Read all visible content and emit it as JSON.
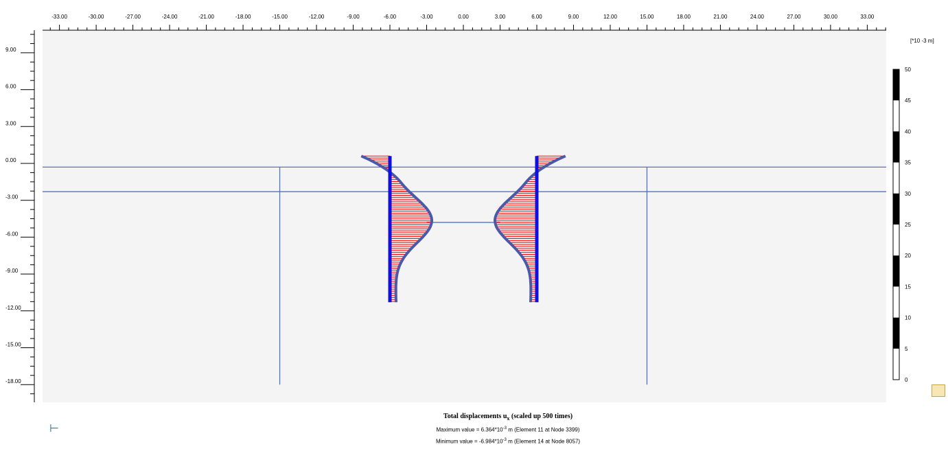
{
  "view": {
    "x_ticks": [
      "-33.00",
      "-30.00",
      "-27.00",
      "-24.00",
      "-21.00",
      "-18.00",
      "-15.00",
      "-12.00",
      "-9.00",
      "-6.00",
      "-3.00",
      "0.00",
      "3.00",
      "6.00",
      "9.00",
      "12.00",
      "15.00",
      "18.00",
      "21.00",
      "24.00",
      "27.00",
      "30.00",
      "33.00"
    ],
    "y_ticks": [
      "9.00",
      "6.00",
      "3.00",
      "0.00",
      "-3.00",
      "-6.00",
      "-9.00",
      "-12.00",
      "-15.00",
      "-18.00"
    ],
    "x_range": [
      -33,
      33
    ],
    "y_range": [
      9,
      -18
    ]
  },
  "legend": {
    "unit_label": "[*10 -3 m]",
    "ticks": [
      "0",
      "5",
      "10",
      "15",
      "20",
      "25",
      "30",
      "35",
      "40",
      "45",
      "50"
    ],
    "black_segments": [
      [
        5,
        10
      ],
      [
        15,
        20
      ],
      [
        25,
        30
      ],
      [
        35,
        40
      ],
      [
        45,
        50
      ]
    ]
  },
  "caption": {
    "title_main": "Total displacements u",
    "title_sub": "x",
    "title_tail": " (scaled up 500 times)",
    "max_prefix": "Maximum value = 6.364*10",
    "max_exp": "-3",
    "max_suffix": " m (Element 11 at Node 3399)",
    "min_prefix": "Minimum value = -6.984*10",
    "min_exp": "-3",
    "min_suffix": " m (Element 14 at Node 8057)"
  },
  "model": {
    "soil_layer_levels": [
      -0.3,
      -2.3
    ],
    "excavation_bottom": -4.8,
    "boundary_x": [
      -15,
      15
    ],
    "boundary_bottom": -18.0,
    "walls": [
      {
        "x": -6.0,
        "top": 0.6,
        "bottom": -11.3,
        "side": "left"
      },
      {
        "x": 6.0,
        "top": 0.6,
        "bottom": -11.3,
        "side": "right"
      }
    ],
    "max_ux": 6.364,
    "min_ux": -6.984
  },
  "colors": {
    "layer_line": "#4a72d8",
    "wall": "#1010e0",
    "displacement_fill": "#ff0000",
    "deformed_shape": "#4a5aa8",
    "background": "#f3f3f3"
  }
}
